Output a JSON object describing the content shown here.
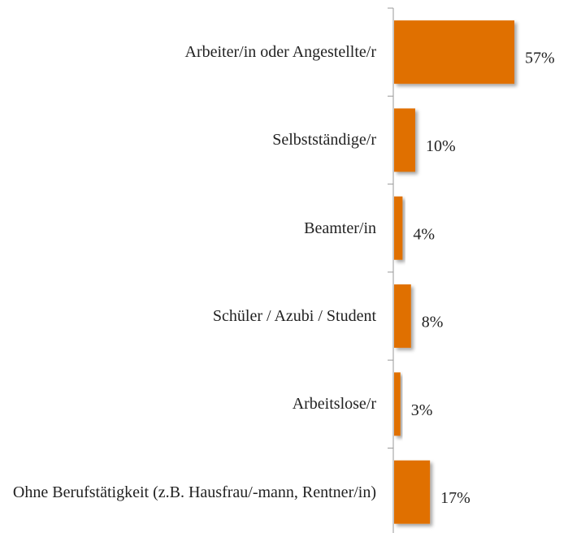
{
  "chart_data": {
    "type": "barh",
    "categories": [
      "Arbeiter/in oder Angestellte/r",
      "Selbstständige/r",
      "Beamter/in",
      "Schüler / Azubi / Student",
      "Arbeitslose/r",
      "Ohne Berufstätigkeit (z.B. Hausfrau/-mann, Rentner/in)"
    ],
    "values": [
      57,
      10,
      4,
      8,
      3,
      17
    ],
    "value_labels": [
      "57%",
      "10%",
      "4%",
      "8%",
      "3%",
      "17%"
    ],
    "color": "#e07000"
  }
}
